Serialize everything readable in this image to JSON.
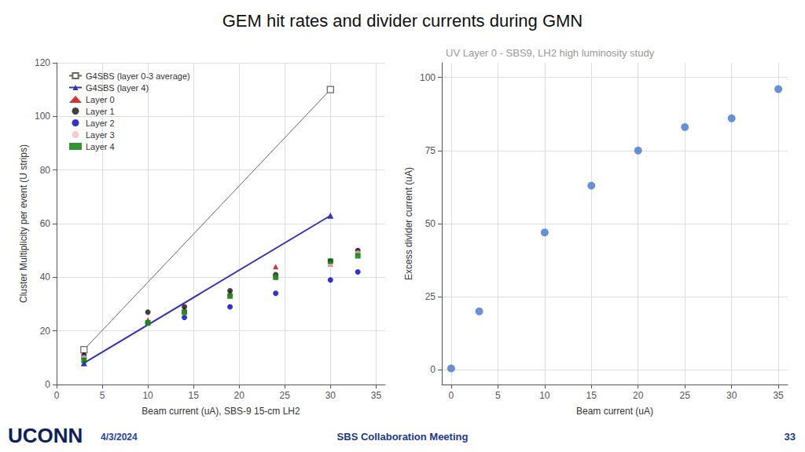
{
  "title": "GEM hit rates and divider currents during GMN",
  "annotations": [
    "UCONN",
    "4/3/2024",
    "SBS Collaboration Meeting",
    "33"
  ],
  "chart_data": [
    {
      "type": "scatter",
      "xlabel": "Beam current (uA), SBS-9 15-cm LH2",
      "ylabel": "Cluster Multiplicity per event (U strips)",
      "xlim": [
        0,
        36
      ],
      "ylim": [
        0,
        120
      ],
      "xticks": [
        0,
        5,
        10,
        15,
        20,
        25,
        30,
        35
      ],
      "yticks": [
        0,
        20,
        40,
        60,
        80,
        100,
        120
      ],
      "grid": true,
      "legend": "upper left",
      "series": [
        {
          "name": "G4SBS (layer 0-3 average)",
          "type": "line",
          "marker": "open_square",
          "color": "#666666",
          "x": [
            3,
            30
          ],
          "values": [
            13,
            110
          ]
        },
        {
          "name": "G4SBS (layer 4)",
          "type": "line",
          "marker": "triangle",
          "color": "#3333bb",
          "x": [
            3,
            30
          ],
          "values": [
            8,
            63
          ]
        },
        {
          "name": "Layer 0",
          "type": "scatter",
          "marker": "triangle",
          "color": "#cc0000",
          "x": [
            3,
            10,
            14,
            19,
            24,
            30,
            33
          ],
          "values": [
            11,
            24,
            28,
            34,
            44,
            45,
            50
          ]
        },
        {
          "name": "Layer 1",
          "type": "scatter",
          "marker": "circle",
          "color": "#111111",
          "x": [
            3,
            10,
            14,
            19,
            24,
            30,
            33
          ],
          "values": [
            11,
            27,
            29,
            35,
            41,
            46,
            50
          ]
        },
        {
          "name": "Layer 2",
          "type": "scatter",
          "marker": "circle",
          "color": "#0000bb",
          "x": [
            3,
            10,
            14,
            19,
            24,
            30,
            33
          ],
          "values": [
            10,
            23,
            25,
            29,
            34,
            39,
            42
          ]
        },
        {
          "name": "Layer 3",
          "type": "scatter",
          "marker": "circle",
          "color": "#f0c0c0",
          "x": [
            3,
            10,
            14,
            19,
            24,
            30,
            33
          ],
          "values": [
            10,
            23,
            27,
            33,
            40,
            45,
            49
          ]
        },
        {
          "name": "Layer 4",
          "type": "scatter",
          "marker": "square",
          "color": "#007700",
          "x": [
            3,
            10,
            14,
            19,
            24,
            30,
            33
          ],
          "values": [
            9,
            23,
            27,
            33,
            40,
            46,
            48
          ]
        }
      ]
    },
    {
      "type": "scatter",
      "title": "UV Layer 0 - SBS9, LH2 high luminosity study",
      "xlabel": "Beam current (uA)",
      "ylabel": "Excess divider current (uA)",
      "xlim": [
        -1,
        36
      ],
      "ylim": [
        -5,
        105
      ],
      "xticks": [
        0,
        5,
        10,
        15,
        20,
        25,
        30,
        35
      ],
      "yticks": [
        0,
        25,
        50,
        75,
        100
      ],
      "grid": true,
      "marker": "circle",
      "color": "#4477cc",
      "x": [
        0,
        3,
        10,
        15,
        20,
        25,
        30,
        35
      ],
      "values": [
        0.5,
        20,
        47,
        63,
        75,
        83,
        86,
        96
      ]
    }
  ]
}
